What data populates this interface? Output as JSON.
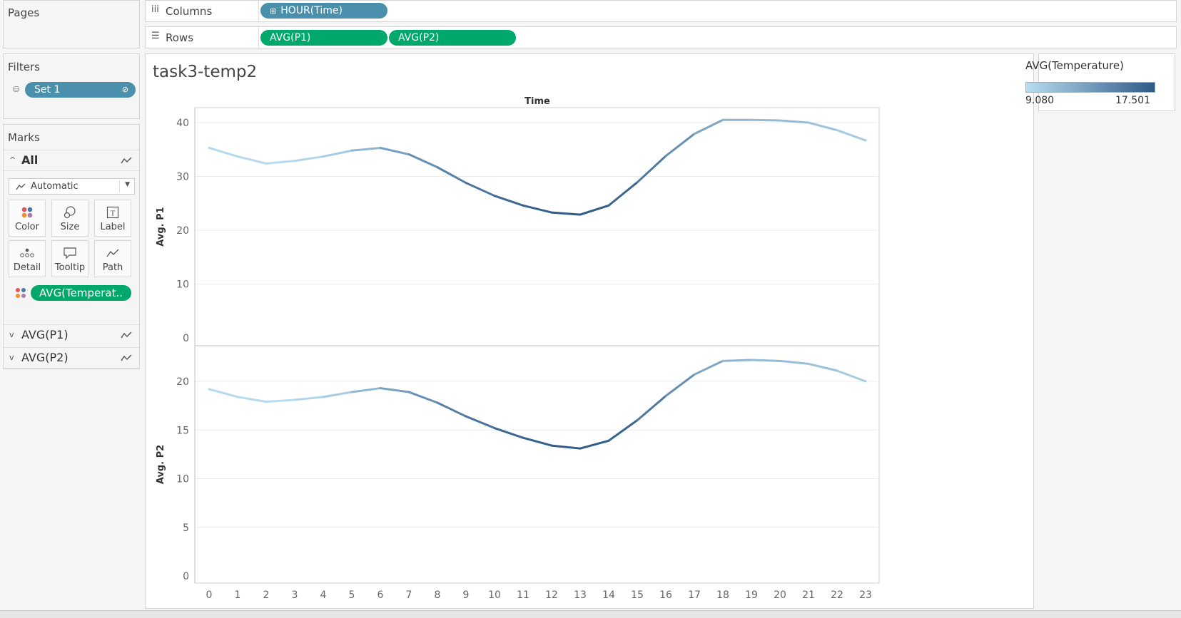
{
  "pages": {
    "title": "Pages"
  },
  "columns_shelf": {
    "label": "Columns",
    "pills": [
      "HOUR(Time)"
    ]
  },
  "rows_shelf": {
    "label": "Rows",
    "pills": [
      "AVG(P1)",
      "AVG(P2)"
    ]
  },
  "filters": {
    "title": "Filters",
    "pills": [
      "Set 1"
    ]
  },
  "marks": {
    "title": "Marks",
    "all_label": "All",
    "mark_type": "Automatic",
    "buttons": [
      "Color",
      "Size",
      "Label",
      "Detail",
      "Tooltip",
      "Path"
    ],
    "color_pill": "AVG(Temperat..",
    "cards": [
      "AVG(P1)",
      "AVG(P2)"
    ]
  },
  "viz": {
    "title": "task3-temp2",
    "top_header": "Time"
  },
  "legend": {
    "title": "AVG(Temperature)",
    "min": "9.080",
    "max": "17.501",
    "color_min": "#b8dcf0",
    "color_max": "#2e5a86"
  },
  "chart_data": {
    "type": "line",
    "x": [
      0,
      1,
      2,
      3,
      4,
      5,
      6,
      7,
      8,
      9,
      10,
      11,
      12,
      13,
      14,
      15,
      16,
      17,
      18,
      19,
      20,
      21,
      22,
      23
    ],
    "xlabel": "",
    "x_tick_labels": [
      "0",
      "1",
      "2",
      "3",
      "4",
      "5",
      "6",
      "7",
      "8",
      "9",
      "10",
      "11",
      "12",
      "13",
      "14",
      "15",
      "16",
      "17",
      "18",
      "19",
      "20",
      "21",
      "22",
      "23"
    ],
    "color_by": "AVG(Temperature)",
    "panes": [
      {
        "ylabel": "Avg. P1",
        "ylim": [
          0,
          42
        ],
        "yticks": [
          0,
          10,
          20,
          30,
          40
        ],
        "values": [
          35.3,
          33.7,
          32.4,
          32.9,
          33.7,
          34.8,
          35.3,
          34.1,
          31.7,
          28.8,
          26.4,
          24.6,
          23.3,
          22.9,
          24.6,
          28.9,
          33.8,
          37.9,
          40.5,
          40.5,
          40.4,
          40.0,
          38.6,
          36.7
        ]
      },
      {
        "ylabel": "Avg. P2",
        "ylim": [
          0,
          22.5
        ],
        "yticks": [
          0,
          5,
          10,
          15,
          20
        ],
        "values": [
          19.2,
          18.4,
          17.9,
          18.1,
          18.4,
          18.9,
          19.3,
          18.9,
          17.8,
          16.4,
          15.2,
          14.2,
          13.4,
          13.1,
          13.9,
          16.0,
          18.5,
          20.7,
          22.1,
          22.2,
          22.1,
          21.8,
          21.1,
          20.0
        ]
      }
    ],
    "temperature": [
      9.4,
      9.3,
      9.08,
      9.3,
      9.7,
      10.6,
      12.4,
      13.6,
      14.6,
      15.4,
      16.2,
      16.8,
      17.3,
      17.501,
      17.2,
      16.2,
      14.9,
      13.3,
      11.9,
      11.4,
      11.2,
      11.0,
      10.5,
      9.9
    ]
  }
}
